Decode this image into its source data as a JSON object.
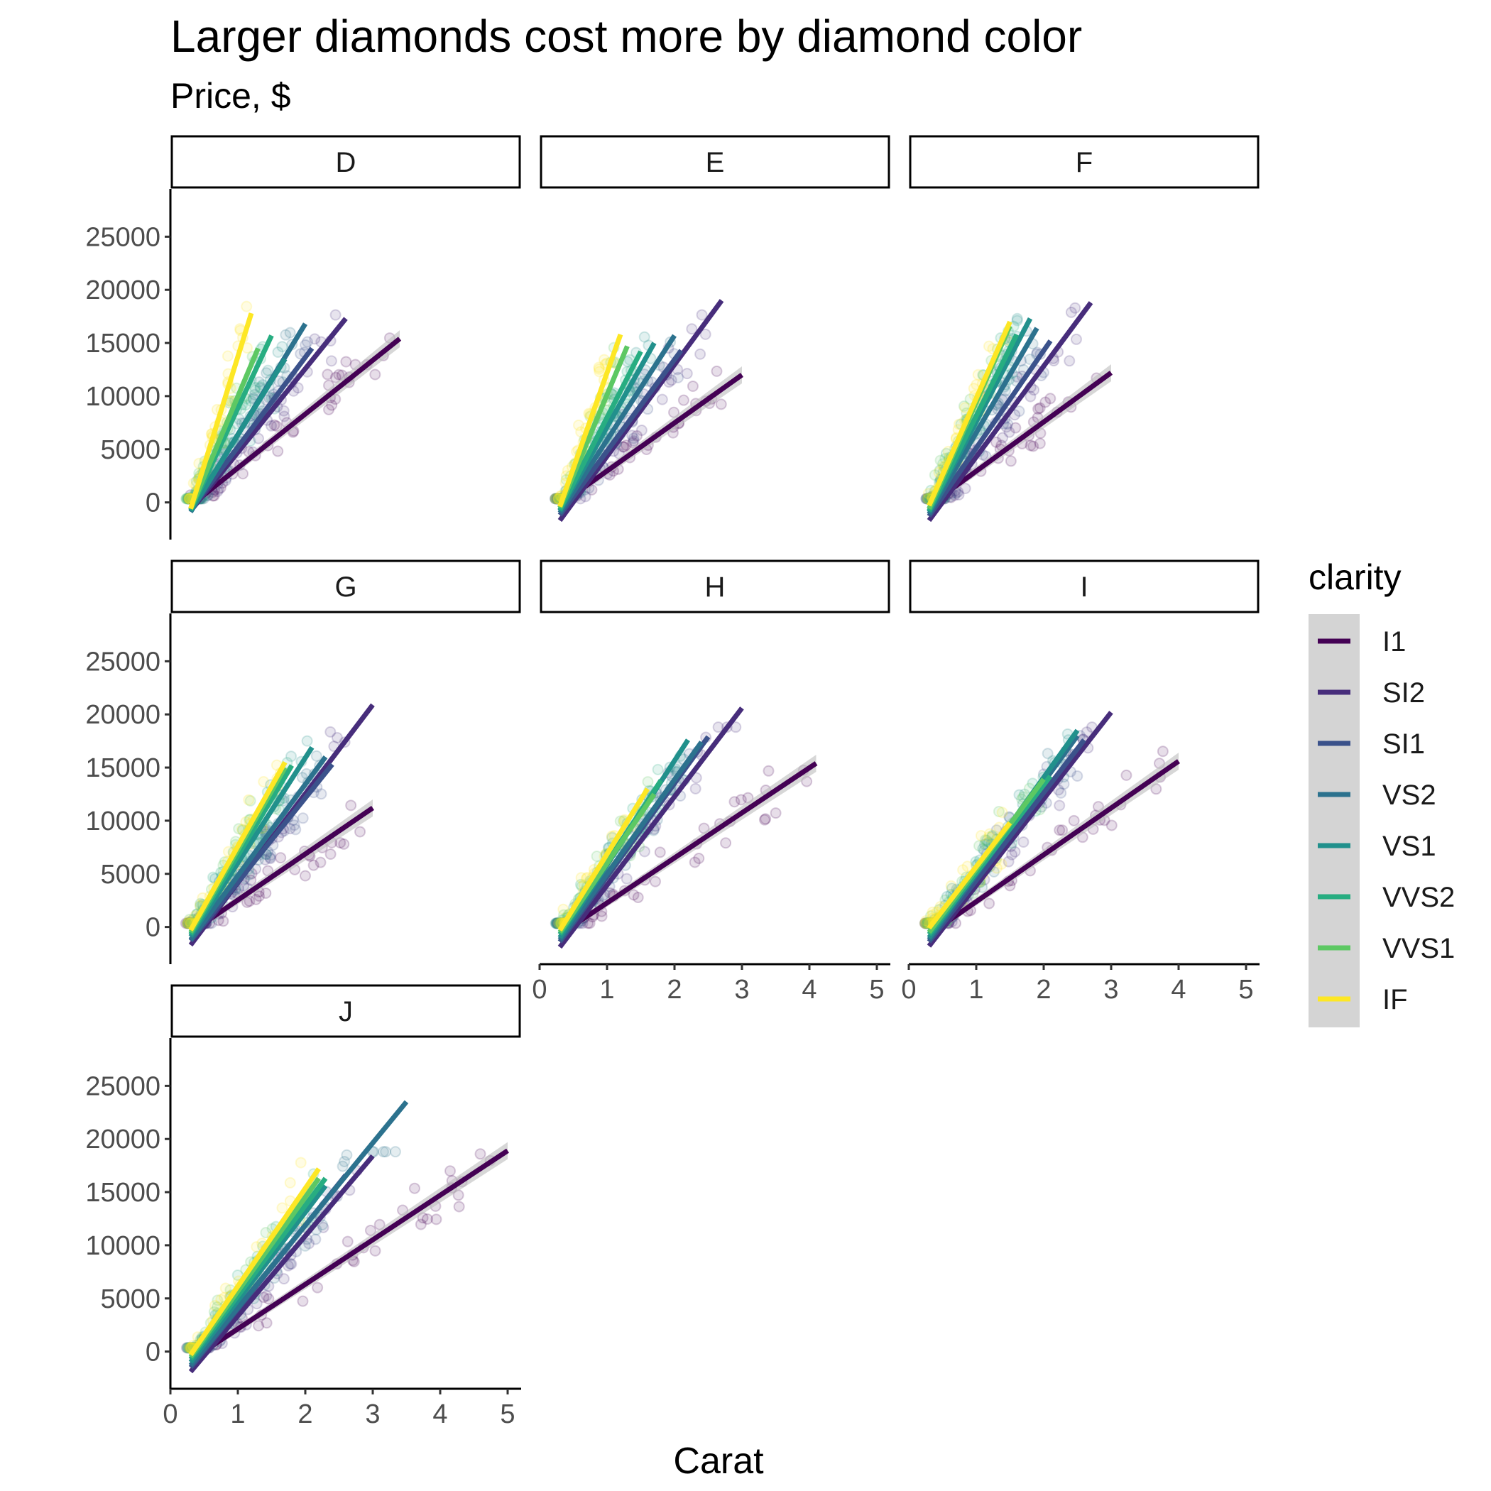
{
  "chart_data": {
    "type": "scatter",
    "title": "Larger diamonds cost more by diamond color",
    "subtitle": "Price, $",
    "xlabel": "Carat",
    "ylabel": "",
    "xlim": [
      0,
      5.2
    ],
    "ylim": [
      -3500,
      29500
    ],
    "x_ticks": [
      "0",
      "1",
      "2",
      "3",
      "4",
      "5"
    ],
    "y_ticks": [
      "0",
      "5000",
      "10000",
      "15000",
      "20000",
      "25000"
    ],
    "grid": false,
    "legend": {
      "title": "clarity",
      "position": "right",
      "entries": [
        {
          "label": "I1",
          "color": "#440154"
        },
        {
          "label": "SI2",
          "color": "#472d7b"
        },
        {
          "label": "SI1",
          "color": "#3b528b"
        },
        {
          "label": "VS2",
          "color": "#2c728e"
        },
        {
          "label": "VS1",
          "color": "#21908c"
        },
        {
          "label": "VVS2",
          "color": "#27ad81"
        },
        {
          "label": "VVS1",
          "color": "#5dc863"
        },
        {
          "label": "IF",
          "color": "#fde725"
        }
      ]
    },
    "panels": [
      {
        "label": "D",
        "fits": [
          {
            "clarity": "I1",
            "x": [
              0.3,
              3.4
            ],
            "y": [
              -300,
              15400
            ]
          },
          {
            "clarity": "SI2",
            "x": [
              0.3,
              2.6
            ],
            "y": [
              -800,
              17300
            ]
          },
          {
            "clarity": "SI1",
            "x": [
              0.3,
              2.1
            ],
            "y": [
              -700,
              14500
            ]
          },
          {
            "clarity": "VS2",
            "x": [
              0.3,
              2.0
            ],
            "y": [
              -900,
              16800
            ]
          },
          {
            "clarity": "VS1",
            "x": [
              0.3,
              1.7
            ],
            "y": [
              -800,
              13500
            ]
          },
          {
            "clarity": "VVS2",
            "x": [
              0.3,
              1.5
            ],
            "y": [
              -700,
              15700
            ]
          },
          {
            "clarity": "VVS1",
            "x": [
              0.3,
              1.3
            ],
            "y": [
              -600,
              14500
            ]
          },
          {
            "clarity": "IF",
            "x": [
              0.3,
              1.2
            ],
            "y": [
              -600,
              17800
            ]
          }
        ]
      },
      {
        "label": "E",
        "fits": [
          {
            "clarity": "I1",
            "x": [
              0.3,
              3.0
            ],
            "y": [
              -200,
              12000
            ]
          },
          {
            "clarity": "SI2",
            "x": [
              0.3,
              2.7
            ],
            "y": [
              -1700,
              19000
            ]
          },
          {
            "clarity": "SI1",
            "x": [
              0.3,
              2.1
            ],
            "y": [
              -1200,
              14300
            ]
          },
          {
            "clarity": "VS2",
            "x": [
              0.3,
              2.0
            ],
            "y": [
              -1000,
              15700
            ]
          },
          {
            "clarity": "VS1",
            "x": [
              0.3,
              1.7
            ],
            "y": [
              -800,
              15000
            ]
          },
          {
            "clarity": "VVS2",
            "x": [
              0.3,
              1.5
            ],
            "y": [
              -700,
              14200
            ]
          },
          {
            "clarity": "VVS1",
            "x": [
              0.3,
              1.3
            ],
            "y": [
              -500,
              14700
            ]
          },
          {
            "clarity": "IF",
            "x": [
              0.3,
              1.2
            ],
            "y": [
              -400,
              15800
            ]
          }
        ]
      },
      {
        "label": "F",
        "fits": [
          {
            "clarity": "I1",
            "x": [
              0.3,
              3.0
            ],
            "y": [
              -300,
              12200
            ]
          },
          {
            "clarity": "SI2",
            "x": [
              0.3,
              2.7
            ],
            "y": [
              -1700,
              18800
            ]
          },
          {
            "clarity": "SI1",
            "x": [
              0.3,
              2.1
            ],
            "y": [
              -1300,
              15200
            ]
          },
          {
            "clarity": "VS2",
            "x": [
              0.3,
              1.9
            ],
            "y": [
              -1100,
              16400
            ]
          },
          {
            "clarity": "VS1",
            "x": [
              0.3,
              1.8
            ],
            "y": [
              -900,
              17300
            ]
          },
          {
            "clarity": "VVS2",
            "x": [
              0.3,
              1.6
            ],
            "y": [
              -800,
              15800
            ]
          },
          {
            "clarity": "VVS1",
            "x": [
              0.3,
              1.5
            ],
            "y": [
              -600,
              16600
            ]
          },
          {
            "clarity": "IF",
            "x": [
              0.3,
              1.5
            ],
            "y": [
              -300,
              17000
            ]
          }
        ]
      },
      {
        "label": "G",
        "fits": [
          {
            "clarity": "I1",
            "x": [
              0.3,
              3.0
            ],
            "y": [
              -500,
              11200
            ]
          },
          {
            "clarity": "SI2",
            "x": [
              0.3,
              3.0
            ],
            "y": [
              -1700,
              20900
            ]
          },
          {
            "clarity": "SI1",
            "x": [
              0.3,
              2.4
            ],
            "y": [
              -1300,
              15300
            ]
          },
          {
            "clarity": "VS2",
            "x": [
              0.3,
              2.3
            ],
            "y": [
              -1200,
              16000
            ]
          },
          {
            "clarity": "VS1",
            "x": [
              0.3,
              2.1
            ],
            "y": [
              -900,
              16900
            ]
          },
          {
            "clarity": "VVS2",
            "x": [
              0.3,
              1.8
            ],
            "y": [
              -700,
              15200
            ]
          },
          {
            "clarity": "VVS1",
            "x": [
              0.3,
              1.7
            ],
            "y": [
              -500,
              15000
            ]
          },
          {
            "clarity": "IF",
            "x": [
              0.3,
              1.7
            ],
            "y": [
              -300,
              15500
            ]
          }
        ]
      },
      {
        "label": "H",
        "fits": [
          {
            "clarity": "I1",
            "x": [
              0.3,
              4.1
            ],
            "y": [
              -700,
              15400
            ]
          },
          {
            "clarity": "SI2",
            "x": [
              0.3,
              3.0
            ],
            "y": [
              -1900,
              20600
            ]
          },
          {
            "clarity": "SI1",
            "x": [
              0.3,
              2.5
            ],
            "y": [
              -1400,
              17900
            ]
          },
          {
            "clarity": "VS2",
            "x": [
              0.3,
              2.4
            ],
            "y": [
              -1200,
              17400
            ]
          },
          {
            "clarity": "VS1",
            "x": [
              0.3,
              2.2
            ],
            "y": [
              -1000,
              17600
            ]
          },
          {
            "clarity": "VVS2",
            "x": [
              0.3,
              1.8
            ],
            "y": [
              -700,
              13800
            ]
          },
          {
            "clarity": "VVS1",
            "x": [
              0.3,
              1.7
            ],
            "y": [
              -500,
              12500
            ]
          },
          {
            "clarity": "IF",
            "x": [
              0.3,
              1.6
            ],
            "y": [
              -300,
              13000
            ]
          }
        ]
      },
      {
        "label": "I",
        "fits": [
          {
            "clarity": "I1",
            "x": [
              0.3,
              4.0
            ],
            "y": [
              -700,
              15600
            ]
          },
          {
            "clarity": "SI2",
            "x": [
              0.3,
              3.0
            ],
            "y": [
              -1800,
              20200
            ]
          },
          {
            "clarity": "SI1",
            "x": [
              0.3,
              2.6
            ],
            "y": [
              -1400,
              17600
            ]
          },
          {
            "clarity": "VS2",
            "x": [
              0.3,
              2.5
            ],
            "y": [
              -1200,
              18000
            ]
          },
          {
            "clarity": "VS1",
            "x": [
              0.3,
              2.5
            ],
            "y": [
              -1000,
              18500
            ]
          },
          {
            "clarity": "VVS2",
            "x": [
              0.3,
              2.1
            ],
            "y": [
              -700,
              14200
            ]
          },
          {
            "clarity": "VVS1",
            "x": [
              0.3,
              2.0
            ],
            "y": [
              -500,
              13900
            ]
          },
          {
            "clarity": "IF",
            "x": [
              0.3,
              1.5
            ],
            "y": [
              -100,
              9800
            ]
          }
        ]
      },
      {
        "label": "J",
        "fits": [
          {
            "clarity": "I1",
            "x": [
              0.3,
              5.0
            ],
            "y": [
              -800,
              18900
            ]
          },
          {
            "clarity": "SI2",
            "x": [
              0.3,
              3.0
            ],
            "y": [
              -1900,
              18400
            ]
          },
          {
            "clarity": "SI1",
            "x": [
              0.3,
              2.6
            ],
            "y": [
              -1500,
              16600
            ]
          },
          {
            "clarity": "VS2",
            "x": [
              0.3,
              3.5
            ],
            "y": [
              -1300,
              23500
            ]
          },
          {
            "clarity": "VS1",
            "x": [
              0.3,
              2.3
            ],
            "y": [
              -1000,
              15600
            ]
          },
          {
            "clarity": "VVS2",
            "x": [
              0.3,
              2.3
            ],
            "y": [
              -700,
              16300
            ]
          },
          {
            "clarity": "VVS1",
            "x": [
              0.3,
              2.2
            ],
            "y": [
              -500,
              16300
            ]
          },
          {
            "clarity": "IF",
            "x": [
              0.3,
              2.2
            ],
            "y": [
              -300,
              17200
            ]
          }
        ]
      }
    ]
  }
}
